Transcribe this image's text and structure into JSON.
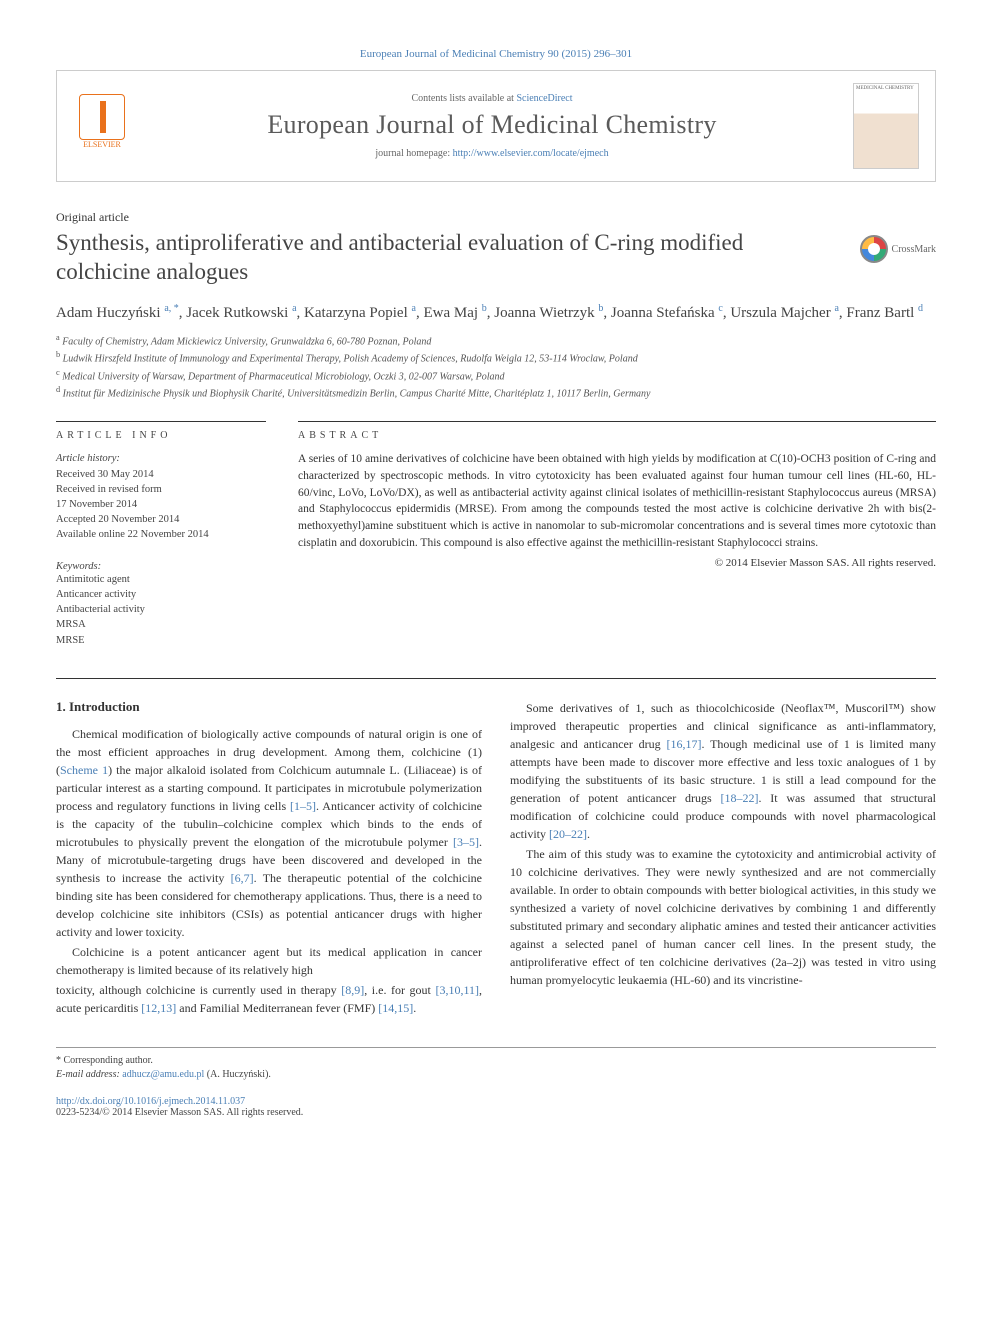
{
  "citation": "European Journal of Medicinal Chemistry 90 (2015) 296–301",
  "header": {
    "contents_prefix": "Contents lists available at ",
    "contents_link": "ScienceDirect",
    "journal": "European Journal of Medicinal Chemistry",
    "homepage_prefix": "journal homepage: ",
    "homepage_url": "http://www.elsevier.com/locate/ejmech",
    "publisher": "ELSEVIER",
    "cover_label": "MEDICINAL CHEMISTRY"
  },
  "article_type": "Original article",
  "title": "Synthesis, antiproliferative and antibacterial evaluation of C-ring modified colchicine analogues",
  "crossmark": "CrossMark",
  "authors_html": "Adam Huczyński <sup>a, *</sup>, Jacek Rutkowski <sup>a</sup>, Katarzyna Popiel <sup>a</sup>, Ewa Maj <sup>b</sup>, Joanna Wietrzyk <sup>b</sup>, Joanna Stefańska <sup>c</sup>, Urszula Majcher <sup>a</sup>, Franz Bartl <sup>d</sup>",
  "affiliations": [
    "a Faculty of Chemistry, Adam Mickiewicz University, Grunwaldzka 6, 60-780 Poznan, Poland",
    "b Ludwik Hirszfeld Institute of Immunology and Experimental Therapy, Polish Academy of Sciences, Rudolfa Weigla 12, 53-114 Wroclaw, Poland",
    "c Medical University of Warsaw, Department of Pharmaceutical Microbiology, Oczki 3, 02-007 Warsaw, Poland",
    "d Institut für Medizinische Physik und Biophysik Charité, Universitätsmedizin Berlin, Campus Charité Mitte, Charitéplatz 1, 10117 Berlin, Germany"
  ],
  "info": {
    "label": "ARTICLE INFO",
    "history_hd": "Article history:",
    "history": [
      "Received 30 May 2014",
      "Received in revised form",
      "17 November 2014",
      "Accepted 20 November 2014",
      "Available online 22 November 2014"
    ],
    "keywords_hd": "Keywords:",
    "keywords": [
      "Antimitotic agent",
      "Anticancer activity",
      "Antibacterial activity",
      "MRSA",
      "MRSE"
    ]
  },
  "abstract": {
    "label": "ABSTRACT",
    "text": "A series of 10 amine derivatives of colchicine have been obtained with high yields by modification at C(10)-OCH3 position of C-ring and characterized by spectroscopic methods. In vitro cytotoxicity has been evaluated against four human tumour cell lines (HL-60, HL-60/vinc, LoVo, LoVo/DX), as well as antibacterial activity against clinical isolates of methicillin-resistant Staphylococcus aureus (MRSA) and Staphylococcus epidermidis (MRSE). From among the compounds tested the most active is colchicine derivative 2h with bis(2-methoxyethyl)amine substituent which is active in nanomolar to sub-micromolar concentrations and is several times more cytotoxic than cisplatin and doxorubicin. This compound is also effective against the methicillin-resistant Staphylococci strains.",
    "copyright": "© 2014 Elsevier Masson SAS. All rights reserved."
  },
  "section1": {
    "heading": "1. Introduction",
    "p1a": "Chemical modification of biologically active compounds of natural origin is one of the most efficient approaches in drug development. Among them, colchicine (1) (",
    "p1scheme": "Scheme 1",
    "p1b": ") the major alkaloid isolated from Colchicum autumnale L. (Liliaceae) is of particular interest as a starting compound. It participates in microtubule polymerization process and regulatory functions in living cells ",
    "p1ref1": "[1–5]",
    "p1c": ". Anticancer activity of colchicine is the capacity of the tubulin–colchicine complex which binds to the ends of microtubules to physically prevent the elongation of the microtubule polymer ",
    "p1ref2": "[3–5]",
    "p1d": ". Many of microtubule-targeting drugs have been discovered and developed in the synthesis to increase the activity ",
    "p1ref3": "[6,7]",
    "p1e": ". The therapeutic potential of the colchicine binding site has been considered for chemotherapy applications. Thus, there is a need to develop colchicine site inhibitors (CSIs) as potential anticancer drugs with higher activity and lower toxicity.",
    "p2a": "Colchicine is a potent anticancer agent but its medical application in cancer chemotherapy is limited because of its relatively high",
    "p2b": "toxicity, although colchicine is currently used in therapy ",
    "p2ref1": "[8,9]",
    "p2c": ", i.e. for gout ",
    "p2ref2": "[3,10,11]",
    "p2d": ", acute pericarditis ",
    "p2ref3": "[12,13]",
    "p2e": " and Familial Mediterranean fever (FMF) ",
    "p2ref4": "[14,15]",
    "p2f": ".",
    "p3a": "Some derivatives of 1, such as thiocolchicoside (Neoflax™, Muscoril™) show improved therapeutic properties and clinical significance as anti-inflammatory, analgesic and anticancer drug ",
    "p3ref1": "[16,17]",
    "p3b": ". Though medicinal use of 1 is limited many attempts have been made to discover more effective and less toxic analogues of 1 by modifying the substituents of its basic structure. 1 is still a lead compound for the generation of potent anticancer drugs ",
    "p3ref2": "[18–22]",
    "p3c": ". It was assumed that structural modification of colchicine could produce compounds with novel pharmacological activity ",
    "p3ref3": "[20–22]",
    "p3d": ".",
    "p4": "The aim of this study was to examine the cytotoxicity and antimicrobial activity of 10 colchicine derivatives. They were newly synthesized and are not commercially available. In order to obtain compounds with better biological activities, in this study we synthesized a variety of novel colchicine derivatives by combining 1 and differently substituted primary and secondary aliphatic amines and tested their anticancer activities against a selected panel of human cancer cell lines. In the present study, the antiproliferative effect of ten colchicine derivatives (2a–2j) was tested in vitro using human promyelocytic leukaemia (HL-60) and its vincristine-"
  },
  "footer": {
    "corr": "* Corresponding author.",
    "email_label": "E-mail address: ",
    "email": "adhucz@amu.edu.pl",
    "email_name": " (A. Huczyński).",
    "doi": "http://dx.doi.org/10.1016/j.ejmech.2014.11.037",
    "issn": "0223-5234/© 2014 Elsevier Masson SAS. All rights reserved."
  },
  "colors": {
    "link": "#4a7fb5",
    "text": "#333333",
    "elsevier": "#e9711c"
  }
}
